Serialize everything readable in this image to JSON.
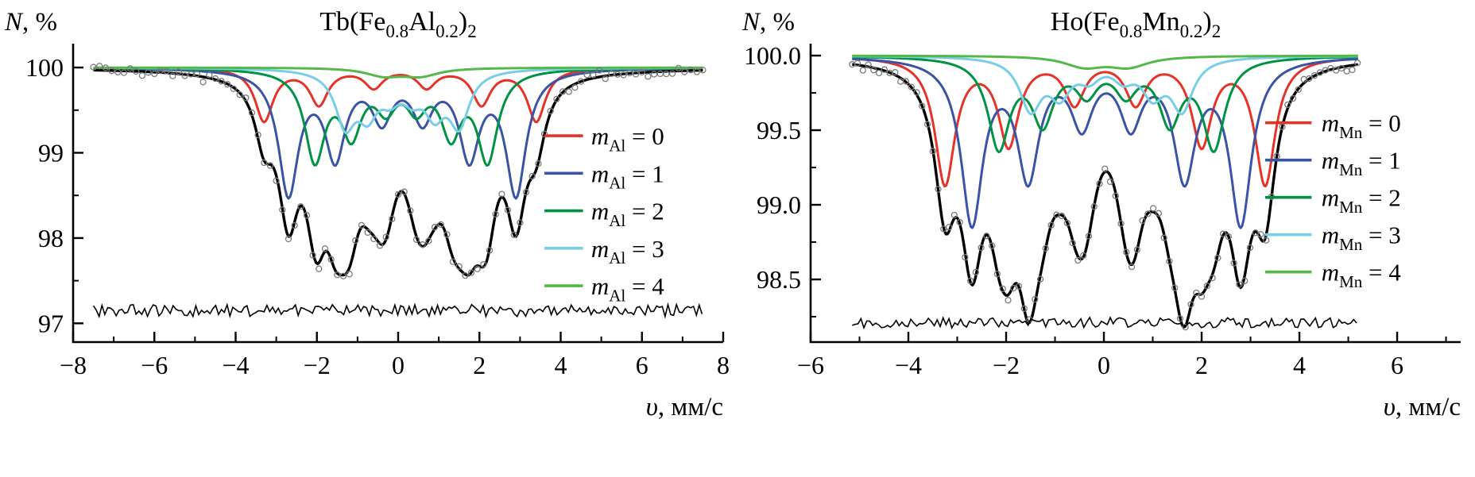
{
  "figure": {
    "background": "#ffffff",
    "kind": "mossbauer-spectra-pair"
  },
  "chart_data": [
    {
      "type": "line",
      "name": "tb-fe-al-spectrum",
      "title": [
        {
          "t": "Tb(Fe"
        },
        {
          "t": "0.8",
          "sub": true
        },
        {
          "t": "Al"
        },
        {
          "t": "0.2",
          "sub": true
        },
        {
          "t": ")"
        },
        {
          "t": "2",
          "sub": true
        }
      ],
      "ylabel": [
        {
          "t": "N",
          "italic": true
        },
        {
          "t": ", %"
        }
      ],
      "xlabel": [
        {
          "t": "υ",
          "italic": true
        },
        {
          "t": ", мм/с"
        }
      ],
      "xlim": [
        -8,
        8
      ],
      "ylim": [
        96.78,
        100.28
      ],
      "xticks": [
        {
          "v": -8,
          "label": "−8"
        },
        {
          "v": -6,
          "label": "−6"
        },
        {
          "v": -4,
          "label": "−4"
        },
        {
          "v": -2,
          "label": "−2"
        },
        {
          "v": 0,
          "label": "0"
        },
        {
          "v": 2,
          "label": "2"
        },
        {
          "v": 4,
          "label": "4"
        },
        {
          "v": 6,
          "label": "6"
        },
        {
          "v": 8,
          "label": "8"
        }
      ],
      "yticks": [
        {
          "v": 97,
          "label": "97"
        },
        {
          "v": 98,
          "label": "98"
        },
        {
          "v": 99,
          "label": "99"
        },
        {
          "v": 100,
          "label": "100"
        }
      ],
      "xminor_step": 1,
      "yminor_step": 0.5,
      "baseline": 100,
      "data_range": [
        -7.5,
        7.5
      ],
      "curve_step": 0.04,
      "scatter": {
        "step": 0.15,
        "sigma": 0.03,
        "color": "#7a7a7a"
      },
      "residual": {
        "y": 97.15,
        "amp": 0.07,
        "step": 0.07
      },
      "total_color": "#000000",
      "components": [
        {
          "key": "mAl0",
          "color": "#e63329",
          "width": 0.27,
          "lines": [
            [
              -3.3,
              0.62
            ],
            [
              -1.95,
              0.42
            ],
            [
              -0.6,
              0.22
            ],
            [
              0.7,
              0.22
            ],
            [
              2.05,
              0.42
            ],
            [
              3.4,
              0.62
            ]
          ]
        },
        {
          "key": "mAl1",
          "color": "#3a53a4",
          "width": 0.3,
          "lines": [
            [
              -2.7,
              1.45
            ],
            [
              -1.55,
              1.0
            ],
            [
              -0.4,
              0.55
            ],
            [
              0.6,
              0.55
            ],
            [
              1.75,
              1.0
            ],
            [
              2.9,
              1.45
            ]
          ]
        },
        {
          "key": "mAl2",
          "color": "#009345",
          "width": 0.3,
          "lines": [
            [
              -2.05,
              1.05
            ],
            [
              -1.15,
              0.72
            ],
            [
              -0.3,
              0.4
            ],
            [
              0.45,
              0.4
            ],
            [
              1.3,
              0.72
            ],
            [
              2.2,
              1.05
            ]
          ]
        },
        {
          "key": "mAl3",
          "color": "#79cde5",
          "width": 0.3,
          "lines": [
            [
              -1.3,
              0.62
            ],
            [
              -0.75,
              0.45
            ],
            [
              -0.2,
              0.25
            ],
            [
              0.35,
              0.25
            ],
            [
              0.9,
              0.45
            ],
            [
              1.5,
              0.62
            ]
          ]
        },
        {
          "key": "mAl4",
          "color": "#54b948",
          "width": 0.55,
          "lines": [
            [
              -0.35,
              0.09
            ],
            [
              0.55,
              0.09
            ]
          ]
        }
      ],
      "legend": {
        "x1": 3.6,
        "x2": 4.55,
        "tx": 4.75,
        "y_top": 99.2,
        "dy": 0.44,
        "entries": [
          {
            "color": "#e63329",
            "label": [
              {
                "t": "m",
                "italic": true
              },
              {
                "t": "Al",
                "sub": true
              },
              {
                "t": " = 0"
              }
            ]
          },
          {
            "color": "#3a53a4",
            "label": [
              {
                "t": "m",
                "italic": true
              },
              {
                "t": "Al",
                "sub": true
              },
              {
                "t": " = 1"
              }
            ]
          },
          {
            "color": "#009345",
            "label": [
              {
                "t": "m",
                "italic": true
              },
              {
                "t": "Al",
                "sub": true
              },
              {
                "t": " = 2"
              }
            ]
          },
          {
            "color": "#79cde5",
            "label": [
              {
                "t": "m",
                "italic": true
              },
              {
                "t": "Al",
                "sub": true
              },
              {
                "t": " = 3"
              }
            ]
          },
          {
            "color": "#54b948",
            "label": [
              {
                "t": "m",
                "italic": true
              },
              {
                "t": "Al",
                "sub": true
              },
              {
                "t": " = 4"
              }
            ]
          }
        ]
      }
    },
    {
      "type": "line",
      "name": "ho-fe-mn-spectrum",
      "title": [
        {
          "t": "Ho(Fe"
        },
        {
          "t": "0.8",
          "sub": true
        },
        {
          "t": "Mn"
        },
        {
          "t": "0.2",
          "sub": true
        },
        {
          "t": ")"
        },
        {
          "t": "2",
          "sub": true
        }
      ],
      "ylabel": [
        {
          "t": "N",
          "italic": true
        },
        {
          "t": ", %"
        }
      ],
      "xlabel": [
        {
          "t": "υ",
          "italic": true
        },
        {
          "t": ", мм/с"
        }
      ],
      "xlim": [
        -6,
        7.3
      ],
      "ylim": [
        98.08,
        100.08
      ],
      "xticks": [
        {
          "v": -6,
          "label": "−6"
        },
        {
          "v": -4,
          "label": "−4"
        },
        {
          "v": -2,
          "label": "−2"
        },
        {
          "v": 0,
          "label": "0"
        },
        {
          "v": 2,
          "label": "2"
        },
        {
          "v": 4,
          "label": "4"
        },
        {
          "v": 6,
          "label": "6"
        }
      ],
      "yticks": [
        {
          "v": 98.5,
          "label": "98.5"
        },
        {
          "v": 99,
          "label": "99.0"
        },
        {
          "v": 99.5,
          "label": "99.5"
        },
        {
          "v": 100,
          "label": "100.0"
        }
      ],
      "xminor_step": 1,
      "yminor_step": 0.25,
      "baseline": 100,
      "data_range": [
        -5.15,
        5.2
      ],
      "curve_step": 0.03,
      "scatter": {
        "step": 0.11,
        "sigma": 0.018,
        "color": "#7a7a7a"
      },
      "residual": {
        "y": 98.21,
        "amp": 0.035,
        "step": 0.06
      },
      "total_color": "#000000",
      "components": [
        {
          "key": "mMn0",
          "color": "#e63329",
          "width": 0.25,
          "lines": [
            [
              -3.25,
              0.85
            ],
            [
              -1.95,
              0.58
            ],
            [
              -0.6,
              0.3
            ],
            [
              0.65,
              0.3
            ],
            [
              2.0,
              0.58
            ],
            [
              3.3,
              0.85
            ]
          ]
        },
        {
          "key": "mMn1",
          "color": "#3a53a4",
          "width": 0.27,
          "lines": [
            [
              -2.7,
              1.1
            ],
            [
              -1.55,
              0.78
            ],
            [
              -0.45,
              0.42
            ],
            [
              0.55,
              0.42
            ],
            [
              1.65,
              0.78
            ],
            [
              2.8,
              1.1
            ]
          ]
        },
        {
          "key": "mMn2",
          "color": "#009345",
          "width": 0.27,
          "lines": [
            [
              -2.15,
              0.6
            ],
            [
              -1.25,
              0.42
            ],
            [
              -0.35,
              0.22
            ],
            [
              0.45,
              0.22
            ],
            [
              1.35,
              0.42
            ],
            [
              2.25,
              0.6
            ]
          ]
        },
        {
          "key": "mMn3",
          "color": "#79cde5",
          "width": 0.27,
          "lines": [
            [
              -1.5,
              0.34
            ],
            [
              -0.9,
              0.23
            ],
            [
              -0.3,
              0.12
            ],
            [
              0.4,
              0.12
            ],
            [
              1.0,
              0.23
            ],
            [
              1.6,
              0.34
            ]
          ]
        },
        {
          "key": "mMn4",
          "color": "#54b948",
          "width": 0.5,
          "lines": [
            [
              -0.4,
              0.07
            ],
            [
              0.5,
              0.07
            ]
          ]
        }
      ],
      "legend": {
        "x1": 3.3,
        "x2": 4.25,
        "tx": 4.45,
        "y_top": 99.55,
        "dy": 0.25,
        "entries": [
          {
            "color": "#e63329",
            "label": [
              {
                "t": "m",
                "italic": true
              },
              {
                "t": "Mn",
                "sub": true
              },
              {
                "t": " = 0"
              }
            ]
          },
          {
            "color": "#3a53a4",
            "label": [
              {
                "t": "m",
                "italic": true
              },
              {
                "t": "Mn",
                "sub": true
              },
              {
                "t": " = 1"
              }
            ]
          },
          {
            "color": "#009345",
            "label": [
              {
                "t": "m",
                "italic": true
              },
              {
                "t": "Mn",
                "sub": true
              },
              {
                "t": " = 2"
              }
            ]
          },
          {
            "color": "#79cde5",
            "label": [
              {
                "t": "m",
                "italic": true
              },
              {
                "t": "Mn",
                "sub": true
              },
              {
                "t": " = 3"
              }
            ]
          },
          {
            "color": "#54b948",
            "label": [
              {
                "t": "m",
                "italic": true
              },
              {
                "t": "Mn",
                "sub": true
              },
              {
                "t": " = 4"
              }
            ]
          }
        ]
      }
    }
  ]
}
